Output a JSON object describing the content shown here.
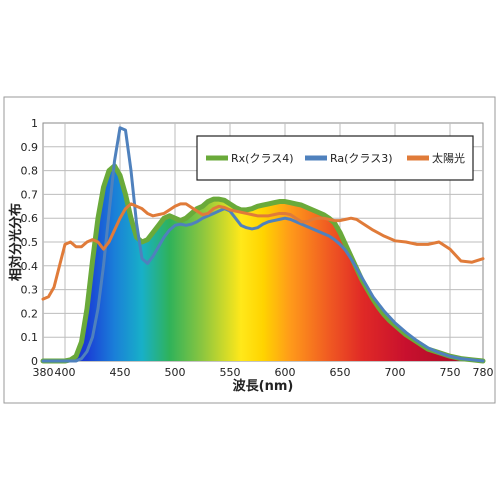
{
  "chart_data": {
    "type": "line",
    "xlabel": "波長(nm)",
    "ylabel": "相対分光分布",
    "xlim": [
      380,
      780
    ],
    "ylim": [
      0,
      1
    ],
    "x_ticks": [
      "380",
      "400",
      "450",
      "500",
      "550",
      "600",
      "650",
      "700",
      "750",
      "780"
    ],
    "y_ticks": [
      "0",
      "0.1",
      "0.2",
      "0.3",
      "0.4",
      "0.5",
      "0.6",
      "0.7",
      "0.8",
      "0.9",
      "1"
    ],
    "grid": true,
    "legend_position": "top-right",
    "series": [
      {
        "name": "Rx(クラス4)",
        "color": "#6aaa3a",
        "x": [
          380,
          390,
          400,
          405,
          410,
          415,
          420,
          425,
          430,
          435,
          440,
          445,
          450,
          455,
          460,
          465,
          470,
          475,
          480,
          485,
          490,
          495,
          500,
          505,
          510,
          515,
          520,
          525,
          530,
          535,
          540,
          545,
          550,
          555,
          560,
          565,
          570,
          575,
          580,
          585,
          590,
          595,
          600,
          605,
          610,
          615,
          620,
          625,
          630,
          635,
          640,
          645,
          650,
          655,
          660,
          665,
          670,
          675,
          680,
          685,
          690,
          695,
          700,
          710,
          720,
          730,
          740,
          750,
          760,
          770,
          780
        ],
        "y": [
          0,
          0,
          0,
          0.005,
          0.02,
          0.08,
          0.22,
          0.42,
          0.6,
          0.73,
          0.8,
          0.82,
          0.78,
          0.7,
          0.6,
          0.52,
          0.5,
          0.51,
          0.54,
          0.57,
          0.6,
          0.61,
          0.6,
          0.59,
          0.6,
          0.62,
          0.64,
          0.65,
          0.67,
          0.68,
          0.68,
          0.675,
          0.66,
          0.645,
          0.635,
          0.635,
          0.64,
          0.65,
          0.655,
          0.66,
          0.665,
          0.67,
          0.67,
          0.665,
          0.66,
          0.655,
          0.645,
          0.635,
          0.625,
          0.615,
          0.6,
          0.58,
          0.54,
          0.49,
          0.44,
          0.39,
          0.34,
          0.3,
          0.26,
          0.225,
          0.195,
          0.17,
          0.15,
          0.11,
          0.08,
          0.05,
          0.035,
          0.02,
          0.01,
          0.005,
          0
        ]
      },
      {
        "name": "Ra(クラス3)",
        "color": "#4f81bd",
        "x": [
          380,
          400,
          410,
          415,
          420,
          425,
          430,
          435,
          440,
          445,
          450,
          455,
          460,
          465,
          470,
          475,
          480,
          485,
          490,
          495,
          500,
          505,
          510,
          515,
          520,
          525,
          530,
          535,
          540,
          545,
          550,
          555,
          560,
          565,
          570,
          575,
          580,
          585,
          590,
          595,
          600,
          605,
          610,
          615,
          620,
          625,
          630,
          635,
          640,
          645,
          650,
          655,
          660,
          665,
          670,
          675,
          680,
          690,
          700,
          710,
          720,
          730,
          740,
          750,
          760,
          770,
          780
        ],
        "y": [
          0,
          0,
          0,
          0.01,
          0.04,
          0.1,
          0.22,
          0.4,
          0.62,
          0.84,
          0.98,
          0.97,
          0.8,
          0.58,
          0.43,
          0.41,
          0.44,
          0.48,
          0.52,
          0.55,
          0.57,
          0.575,
          0.57,
          0.575,
          0.585,
          0.6,
          0.61,
          0.62,
          0.63,
          0.64,
          0.63,
          0.6,
          0.57,
          0.56,
          0.555,
          0.56,
          0.575,
          0.585,
          0.59,
          0.595,
          0.6,
          0.595,
          0.585,
          0.575,
          0.565,
          0.555,
          0.545,
          0.535,
          0.525,
          0.51,
          0.49,
          0.465,
          0.43,
          0.39,
          0.35,
          0.31,
          0.27,
          0.21,
          0.16,
          0.12,
          0.085,
          0.055,
          0.035,
          0.02,
          0.01,
          0.005,
          0
        ]
      },
      {
        "name": "太陽光",
        "color": "#e07b39",
        "x": [
          380,
          385,
          390,
          395,
          400,
          405,
          410,
          415,
          420,
          425,
          430,
          435,
          440,
          445,
          450,
          455,
          460,
          465,
          470,
          475,
          480,
          485,
          490,
          495,
          500,
          505,
          510,
          515,
          520,
          525,
          530,
          535,
          540,
          545,
          550,
          555,
          560,
          565,
          570,
          575,
          580,
          585,
          590,
          595,
          600,
          605,
          610,
          615,
          620,
          625,
          630,
          635,
          640,
          645,
          650,
          655,
          660,
          665,
          670,
          680,
          690,
          700,
          710,
          720,
          730,
          740,
          750,
          760,
          770,
          780
        ],
        "y": [
          0.26,
          0.27,
          0.31,
          0.4,
          0.49,
          0.5,
          0.48,
          0.48,
          0.5,
          0.51,
          0.5,
          0.47,
          0.5,
          0.55,
          0.6,
          0.64,
          0.66,
          0.65,
          0.64,
          0.62,
          0.61,
          0.615,
          0.62,
          0.635,
          0.65,
          0.66,
          0.66,
          0.645,
          0.63,
          0.615,
          0.62,
          0.64,
          0.65,
          0.645,
          0.635,
          0.63,
          0.625,
          0.62,
          0.615,
          0.61,
          0.61,
          0.61,
          0.615,
          0.62,
          0.62,
          0.615,
          0.6,
          0.585,
          0.585,
          0.595,
          0.6,
          0.6,
          0.595,
          0.59,
          0.59,
          0.595,
          0.6,
          0.595,
          0.58,
          0.55,
          0.525,
          0.505,
          0.5,
          0.49,
          0.49,
          0.5,
          0.47,
          0.42,
          0.415,
          0.43
        ]
      }
    ]
  }
}
